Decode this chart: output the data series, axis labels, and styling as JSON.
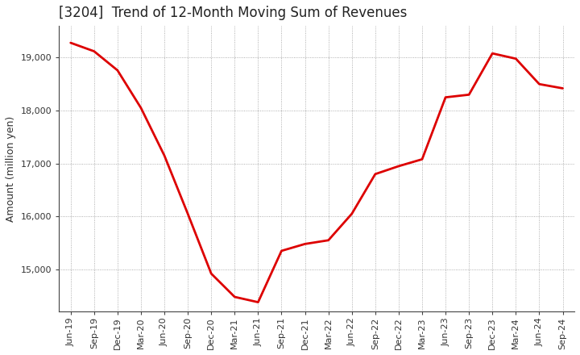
{
  "title": "[3204]  Trend of 12-Month Moving Sum of Revenues",
  "ylabel": "Amount (million yen)",
  "line_color": "#dd0000",
  "background_color": "#ffffff",
  "plot_bg_color": "#ffffff",
  "grid_color": "#999999",
  "x_labels": [
    "Jun-19",
    "Sep-19",
    "Dec-19",
    "Mar-20",
    "Jun-20",
    "Sep-20",
    "Dec-20",
    "Mar-21",
    "Jun-21",
    "Sep-21",
    "Dec-21",
    "Mar-22",
    "Jun-22",
    "Sep-22",
    "Dec-22",
    "Mar-23",
    "Jun-23",
    "Sep-23",
    "Dec-23",
    "Mar-24",
    "Jun-24",
    "Sep-24"
  ],
  "values": [
    19280,
    19120,
    18760,
    18050,
    17150,
    16050,
    14920,
    14480,
    14380,
    15350,
    15480,
    15550,
    16050,
    16800,
    16950,
    17080,
    18250,
    18300,
    19080,
    18980,
    18500,
    18420
  ],
  "ylim_min": 14200,
  "ylim_max": 19600,
  "yticks": [
    15000,
    16000,
    17000,
    18000,
    19000
  ],
  "line_width": 2.0,
  "title_fontsize": 12,
  "label_fontsize": 9,
  "tick_fontsize": 8
}
